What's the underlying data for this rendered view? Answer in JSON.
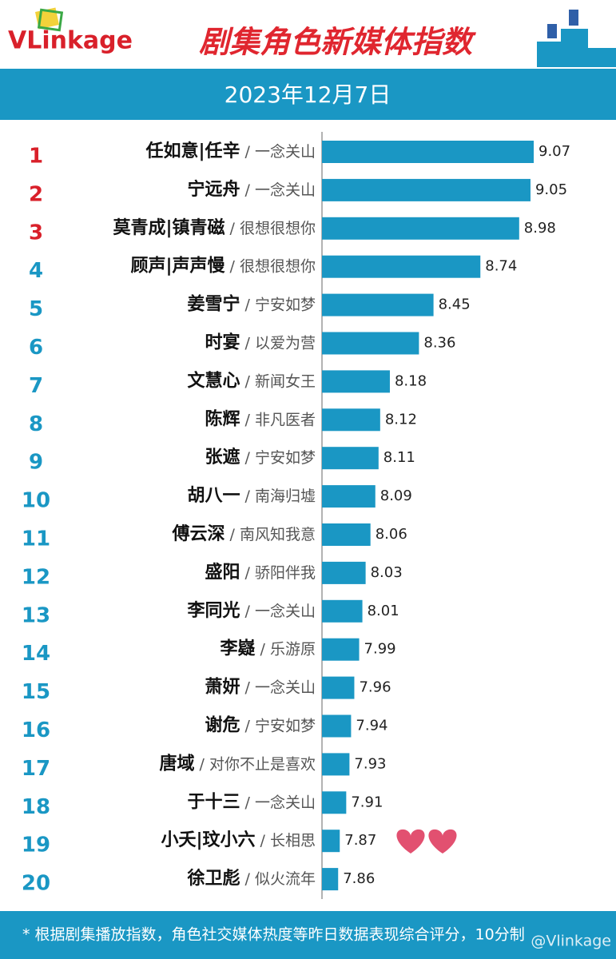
{
  "chart_data": {
    "type": "bar",
    "orientation": "horizontal",
    "logo": "VLinkage",
    "title": "剧集角色新媒体指数",
    "subtitle": "2023年12月7日",
    "ranks": [
      1,
      2,
      3,
      4,
      5,
      6,
      7,
      8,
      9,
      10,
      11,
      12,
      13,
      14,
      15,
      16,
      17,
      18,
      19,
      20
    ],
    "categories": [
      "任如意|任辛",
      "宁远舟",
      "莫青成|镇青磁",
      "顾声|声声慢",
      "姜雪宁",
      "时宴",
      "文慧心",
      "陈辉",
      "张遮",
      "胡八一",
      "傅云深",
      "盛阳",
      "李同光",
      "李嶷",
      "萧妍",
      "谢危",
      "唐域",
      "于十三",
      "小夭|玟小六",
      "徐卫彪"
    ],
    "dramas": [
      "/ 一念关山",
      "/ 一念关山",
      "/ 很想很想你",
      "/ 很想很想你",
      "/ 宁安如梦",
      "/ 以爱为营",
      "/ 新闻女王",
      "/ 非凡医者",
      "/ 宁安如梦",
      "/ 南海归墟",
      "/ 南风知我意",
      "/ 骄阳伴我",
      "/ 一念关山",
      "/ 乐游原",
      "/ 一念关山",
      "/ 宁安如梦",
      "/ 对你不止是喜欢",
      "/ 一念关山",
      "/ 长相思",
      "/ 似火流年"
    ],
    "values": [
      9.07,
      9.05,
      8.98,
      8.74,
      8.45,
      8.36,
      8.18,
      8.12,
      8.11,
      8.09,
      8.06,
      8.03,
      8.01,
      7.99,
      7.96,
      7.94,
      7.93,
      7.91,
      7.87,
      7.86
    ],
    "color": "#1a97c4",
    "top_rank_color": "#d9202a",
    "rank_color": "#1a97c4",
    "xlim": [
      7.76,
      9.5
    ],
    "footnote": "* 根据剧集播放指数，角色社交媒体热度等昨日数据表现综合评分，10分制",
    "watermark": "@Vlinkage"
  }
}
